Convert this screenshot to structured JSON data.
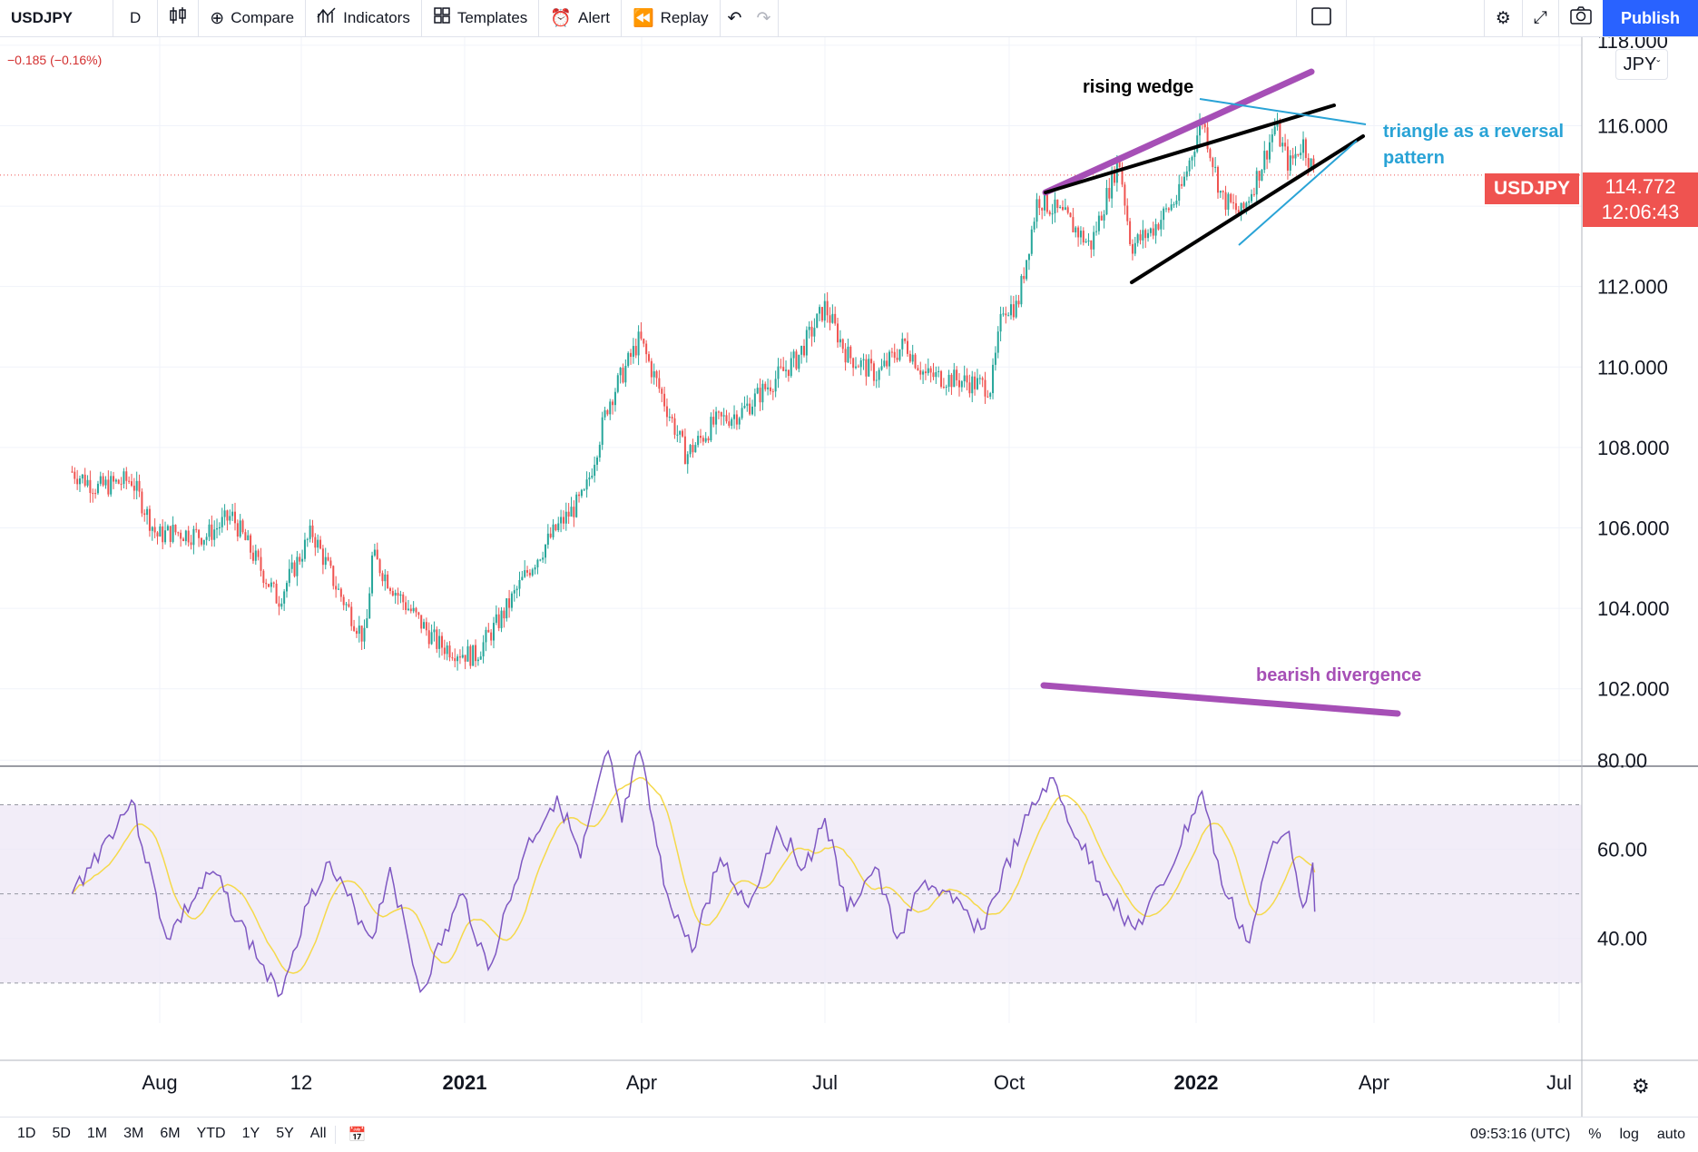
{
  "toolbar": {
    "symbol": "USDJPY",
    "interval": "D",
    "compare": "Compare",
    "indicators": "Indicators",
    "templates": "Templates",
    "alert": "Alert",
    "replay": "Replay",
    "publish": "Publish"
  },
  "header": {
    "change": "−0.185 (−0.16%)"
  },
  "price_scale": {
    "currency": "JPY",
    "symbol_badge": "USDJPY",
    "last_price": "114.772",
    "countdown": "12:06:43",
    "partial_top_label": "118.000"
  },
  "annotations": {
    "wedge": "rising wedge",
    "triangle_line1": "triangle as a reversal",
    "triangle_line2": "pattern",
    "divergence": "bearish divergence"
  },
  "bottom": {
    "ranges": [
      "1D",
      "5D",
      "1M",
      "3M",
      "6M",
      "YTD",
      "1Y",
      "5Y",
      "All"
    ],
    "time": "09:53:16 (UTC)",
    "percent": "%",
    "log": "log",
    "auto": "auto"
  },
  "colors": {
    "up": "#26a69a",
    "down": "#ef5350",
    "rsi": "#7e57c2",
    "rsi_ma": "#f5d94a",
    "wedge_top": "#a64fb6",
    "triangle": "#29a3d6",
    "divergence": "#a64fb6",
    "rsi_band": "#ede7f6"
  },
  "chart_data": [
    {
      "type": "candlestick",
      "symbol": "USDJPY",
      "interval": "D",
      "x_labels": [
        "Aug",
        "12",
        "2021",
        "Apr",
        "Jul",
        "Oct",
        "2022",
        "Apr",
        "Jul"
      ],
      "y_ticks": [
        102,
        104,
        106,
        108,
        110,
        112,
        114,
        116,
        118
      ],
      "ylim": [
        101,
        118.2
      ],
      "y_labels": [
        "102.000",
        "104.000",
        "106.000",
        "108.000",
        "110.000",
        "112.000",
        "116.000"
      ],
      "last_price": 114.772,
      "path_points": [
        {
          "date": "2020-07-01",
          "close": 107.4
        },
        {
          "date": "2020-07-10",
          "close": 107.0
        },
        {
          "date": "2020-07-22",
          "close": 107.2
        },
        {
          "date": "2020-07-31",
          "close": 105.8
        },
        {
          "date": "2020-08-07",
          "close": 105.9
        },
        {
          "date": "2020-08-21",
          "close": 105.8
        },
        {
          "date": "2020-09-01",
          "close": 106.3
        },
        {
          "date": "2020-09-21",
          "close": 104.2
        },
        {
          "date": "2020-10-07",
          "close": 105.9
        },
        {
          "date": "2020-10-21",
          "close": 104.5
        },
        {
          "date": "2020-11-06",
          "close": 103.2
        },
        {
          "date": "2020-11-10",
          "close": 105.3
        },
        {
          "date": "2020-11-25",
          "close": 104.3
        },
        {
          "date": "2020-12-17",
          "close": 103.1
        },
        {
          "date": "2021-01-06",
          "close": 102.8
        },
        {
          "date": "2021-01-20",
          "close": 103.8
        },
        {
          "date": "2021-02-03",
          "close": 105.0
        },
        {
          "date": "2021-02-17",
          "close": 106.0
        },
        {
          "date": "2021-03-03",
          "close": 106.8
        },
        {
          "date": "2021-03-15",
          "close": 109.1
        },
        {
          "date": "2021-03-31",
          "close": 110.7
        },
        {
          "date": "2021-04-07",
          "close": 109.8
        },
        {
          "date": "2021-04-23",
          "close": 107.8
        },
        {
          "date": "2021-05-07",
          "close": 108.6
        },
        {
          "date": "2021-05-21",
          "close": 108.9
        },
        {
          "date": "2021-06-04",
          "close": 109.6
        },
        {
          "date": "2021-06-17",
          "close": 110.2
        },
        {
          "date": "2021-07-01",
          "close": 111.5
        },
        {
          "date": "2021-07-12",
          "close": 110.3
        },
        {
          "date": "2021-07-27",
          "close": 109.8
        },
        {
          "date": "2021-08-10",
          "close": 110.6
        },
        {
          "date": "2021-08-20",
          "close": 109.8
        },
        {
          "date": "2021-09-03",
          "close": 109.7
        },
        {
          "date": "2021-09-22",
          "close": 109.5
        },
        {
          "date": "2021-09-28",
          "close": 111.5
        },
        {
          "date": "2021-10-05",
          "close": 111.5
        },
        {
          "date": "2021-10-15",
          "close": 114.2
        },
        {
          "date": "2021-10-29",
          "close": 113.7
        },
        {
          "date": "2021-11-10",
          "close": 113.0
        },
        {
          "date": "2021-11-24",
          "close": 115.2
        },
        {
          "date": "2021-11-30",
          "close": 113.0
        },
        {
          "date": "2021-12-10",
          "close": 113.4
        },
        {
          "date": "2021-12-24",
          "close": 114.3
        },
        {
          "date": "2022-01-04",
          "close": 116.2
        },
        {
          "date": "2022-01-14",
          "close": 114.2
        },
        {
          "date": "2022-01-24",
          "close": 113.8
        },
        {
          "date": "2022-02-03",
          "close": 115.0
        },
        {
          "date": "2022-02-10",
          "close": 116.0
        },
        {
          "date": "2022-02-17",
          "close": 115.0
        },
        {
          "date": "2022-02-24",
          "close": 115.6
        },
        {
          "date": "2022-03-02",
          "close": 114.772
        }
      ]
    },
    {
      "type": "line",
      "name": "RSI",
      "y_ticks": [
        40,
        60,
        80
      ],
      "y_labels": [
        "40.00",
        "60.00",
        "80.00"
      ],
      "ylim": [
        21,
        87
      ],
      "bands": [
        30,
        50,
        70
      ],
      "points": [
        {
          "date": "2020-07-01",
          "value": 50
        },
        {
          "date": "2020-07-22",
          "value": 71
        },
        {
          "date": "2020-08-04",
          "value": 40
        },
        {
          "date": "2020-08-24",
          "value": 55
        },
        {
          "date": "2020-09-21",
          "value": 27
        },
        {
          "date": "2020-10-05",
          "value": 48
        },
        {
          "date": "2020-10-15",
          "value": 57
        },
        {
          "date": "2020-11-10",
          "value": 40
        },
        {
          "date": "2020-11-20",
          "value": 56
        },
        {
          "date": "2020-12-07",
          "value": 28
        },
        {
          "date": "2020-12-31",
          "value": 50
        },
        {
          "date": "2021-01-13",
          "value": 33
        },
        {
          "date": "2021-02-01",
          "value": 60
        },
        {
          "date": "2021-02-17",
          "value": 72
        },
        {
          "date": "2021-03-01",
          "value": 58
        },
        {
          "date": "2021-03-15",
          "value": 82
        },
        {
          "date": "2021-03-22",
          "value": 66
        },
        {
          "date": "2021-03-31",
          "value": 82
        },
        {
          "date": "2021-04-12",
          "value": 52
        },
        {
          "date": "2021-04-26",
          "value": 37
        },
        {
          "date": "2021-05-10",
          "value": 58
        },
        {
          "date": "2021-05-24",
          "value": 47
        },
        {
          "date": "2021-06-07",
          "value": 65
        },
        {
          "date": "2021-06-21",
          "value": 56
        },
        {
          "date": "2021-07-01",
          "value": 67
        },
        {
          "date": "2021-07-12",
          "value": 46
        },
        {
          "date": "2021-07-26",
          "value": 56
        },
        {
          "date": "2021-08-06",
          "value": 40
        },
        {
          "date": "2021-08-20",
          "value": 53
        },
        {
          "date": "2021-09-03",
          "value": 48
        },
        {
          "date": "2021-09-17",
          "value": 42
        },
        {
          "date": "2021-10-07",
          "value": 64
        },
        {
          "date": "2021-10-21",
          "value": 76
        },
        {
          "date": "2021-11-04",
          "value": 62
        },
        {
          "date": "2021-11-18",
          "value": 50
        },
        {
          "date": "2021-12-02",
          "value": 42
        },
        {
          "date": "2021-12-16",
          "value": 52
        },
        {
          "date": "2022-01-04",
          "value": 73
        },
        {
          "date": "2022-01-14",
          "value": 52
        },
        {
          "date": "2022-01-28",
          "value": 39
        },
        {
          "date": "2022-02-07",
          "value": 59
        },
        {
          "date": "2022-02-17",
          "value": 64
        },
        {
          "date": "2022-02-24",
          "value": 47
        },
        {
          "date": "2022-03-01",
          "value": 57
        },
        {
          "date": "2022-03-02",
          "value": 46
        }
      ]
    }
  ]
}
